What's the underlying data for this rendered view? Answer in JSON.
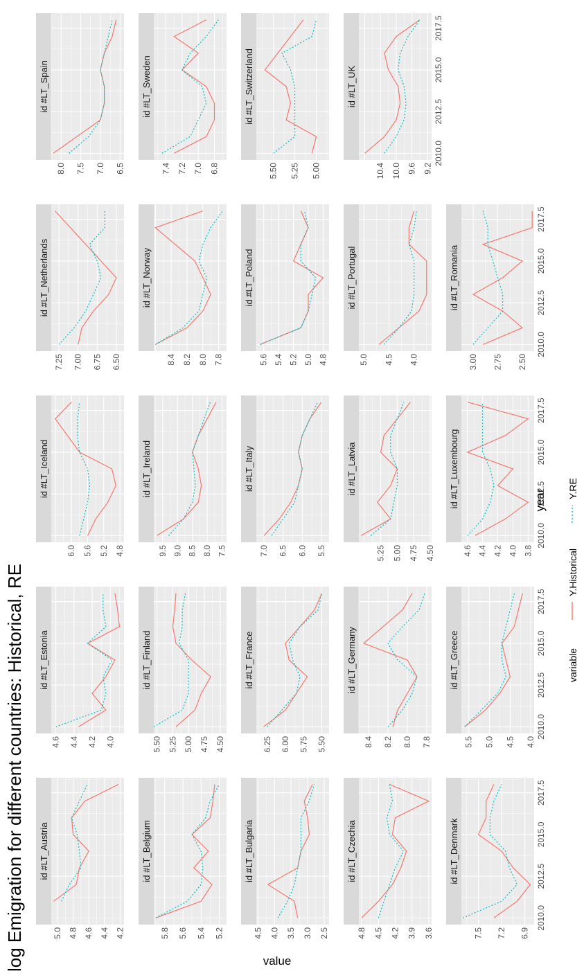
{
  "chart_data": {
    "type": "line",
    "title": "log Emigration for different countries: Historical, RE",
    "xlabel": "year",
    "ylabel": "value",
    "legend": {
      "title": "variable",
      "position": "bottom",
      "entries": [
        {
          "name": "Y.Historical",
          "color": "#f8766d",
          "linetype": "solid"
        },
        {
          "name": "Y.RE",
          "color": "#00bfc4",
          "linetype": "dotted"
        }
      ]
    },
    "grid": true,
    "x": [
      2010,
      2011,
      2012,
      2013,
      2014,
      2015,
      2016,
      2017,
      2018
    ],
    "x_ticks": [
      "2010.0",
      "2012.5",
      "2015.0",
      "2017.5"
    ],
    "panels": [
      {
        "label": "id #LT_Austria",
        "x": [
          2011,
          2012,
          2013,
          2014,
          2015,
          2016,
          2017,
          2018
        ],
        "x_ticks": [
          "2012.5",
          "2015.0",
          "2017.5"
        ],
        "ylim": [
          4.15,
          5.08
        ],
        "y_ticks": [
          "4.2",
          "4.4",
          "4.6",
          "4.8",
          "5.0"
        ],
        "series": [
          {
            "name": "Y.Historical",
            "values": [
              5.05,
              4.76,
              4.72,
              4.6,
              4.8,
              4.82,
              4.65,
              4.22
            ]
          },
          {
            "name": "Y.RE",
            "values": [
              4.95,
              4.85,
              4.7,
              4.72,
              4.75,
              4.82,
              4.72,
              4.62
            ]
          }
        ]
      },
      {
        "label": "id #LT_Belgium",
        "ylim": [
          5.12,
          5.92
        ],
        "y_ticks": [
          "5.2",
          "5.4",
          "5.6",
          "5.8"
        ],
        "series": [
          {
            "name": "Y.Historical",
            "values": [
              5.9,
              5.4,
              5.28,
              5.48,
              5.32,
              5.5,
              5.3,
              5.27,
              5.25
            ]
          },
          {
            "name": "Y.RE",
            "values": [
              5.9,
              5.55,
              5.4,
              5.38,
              5.4,
              5.5,
              5.35,
              5.3,
              5.2
            ]
          }
        ]
      },
      {
        "label": "id #LT_Bulgaria",
        "ylim": [
          2.35,
          4.55
        ],
        "y_ticks": [
          "2.5",
          "3.0",
          "3.5",
          "4.0",
          "4.5"
        ],
        "series": [
          {
            "name": "Y.Historical",
            "values": [
              3.3,
              3.4,
              4.2,
              3.3,
              3.2,
              2.95,
              3.0,
              3.1,
              2.85
            ]
          },
          {
            "name": "Y.RE",
            "values": [
              3.9,
              3.6,
              3.4,
              3.3,
              3.2,
              3.2,
              3.2,
              2.95,
              2.8
            ]
          }
        ]
      },
      {
        "label": "id #LT_Czechia",
        "ylim": [
          3.55,
          4.85
        ],
        "y_ticks": [
          "3.6",
          "3.9",
          "4.2",
          "4.5",
          "4.8"
        ],
        "series": [
          {
            "name": "Y.Historical",
            "values": [
              4.8,
              4.5,
              4.25,
              4.1,
              4.0,
              4.25,
              4.2,
              3.6,
              4.3
            ]
          },
          {
            "name": "Y.RE",
            "values": [
              4.5,
              4.4,
              4.3,
              4.2,
              4.05,
              4.3,
              4.35,
              4.25,
              4.3
            ]
          }
        ]
      },
      {
        "label": "id #LT_Denmark",
        "ylim": [
          6.78,
          7.72
        ],
        "y_ticks": [
          "6.9",
          "7.2",
          "7.5"
        ],
        "series": [
          {
            "name": "Y.Historical",
            "values": [
              7.3,
              7.0,
              6.83,
              7.05,
              7.2,
              7.5,
              7.4,
              7.4,
              7.3
            ]
          },
          {
            "name": "Y.RE",
            "values": [
              7.7,
              7.2,
              7.0,
              7.1,
              7.15,
              7.35,
              7.35,
              7.3,
              7.2
            ]
          }
        ]
      },
      {
        "label": "id #LT_Estonia",
        "ylim": [
          3.85,
          4.65
        ],
        "y_ticks": [
          "4.0",
          "4.2",
          "4.4",
          "4.6"
        ],
        "series": [
          {
            "name": "Y.Historical",
            "values": [
              4.35,
              4.05,
              4.2,
              4.05,
              3.95,
              4.25,
              3.9,
              3.92,
              3.95
            ]
          },
          {
            "name": "Y.RE",
            "values": [
              4.6,
              4.1,
              4.05,
              4.08,
              3.98,
              4.25,
              4.05,
              4.08,
              4.08
            ]
          }
        ]
      },
      {
        "label": "id #LT_Finland",
        "ylim": [
          4.4,
          5.55
        ],
        "y_ticks": [
          "4.50",
          "4.75",
          "5.00",
          "5.25",
          "5.50"
        ],
        "series": [
          {
            "name": "Y.Historical",
            "values": [
              5.2,
              4.9,
              4.8,
              4.65,
              4.95,
              5.2,
              5.25,
              5.22,
              5.2
            ]
          },
          {
            "name": "Y.RE",
            "values": [
              5.55,
              5.1,
              5.0,
              5.0,
              5.0,
              5.15,
              5.1,
              5.1,
              5.05
            ]
          }
        ]
      },
      {
        "label": "id #LT_France",
        "ylim": [
          5.4,
          6.4
        ],
        "y_ticks": [
          "5.50",
          "5.75",
          "6.00",
          "6.25"
        ],
        "series": [
          {
            "name": "Y.Historical",
            "values": [
              6.3,
              6.0,
              5.85,
              5.7,
              5.95,
              6.0,
              5.8,
              5.6,
              5.5
            ]
          },
          {
            "name": "Y.RE",
            "values": [
              6.25,
              6.05,
              5.85,
              5.8,
              5.9,
              5.95,
              5.8,
              5.55,
              5.5
            ]
          }
        ]
      },
      {
        "label": "id #LT_Germany",
        "ylim": [
          7.75,
          8.5
        ],
        "y_ticks": [
          "7.8",
          "8.0",
          "8.2",
          "8.4"
        ],
        "series": [
          {
            "name": "Y.Historical",
            "values": [
              8.15,
              8.1,
              8.0,
              7.9,
              8.0,
              8.45,
              8.25,
              8.05,
              7.95
            ]
          },
          {
            "name": "Y.RE",
            "values": [
              8.2,
              8.05,
              7.95,
              7.9,
              8.1,
              8.2,
              8.05,
              7.88,
              7.82
            ]
          }
        ]
      },
      {
        "label": "id #LT_Greece",
        "ylim": [
          3.92,
          5.68
        ],
        "y_ticks": [
          "4.0",
          "4.5",
          "5.0",
          "5.5"
        ],
        "series": [
          {
            "name": "Y.Historical",
            "values": [
              5.6,
              5.1,
              4.75,
              4.5,
              4.6,
              4.7,
              4.4,
              4.3,
              4.2
            ]
          },
          {
            "name": "Y.RE",
            "values": [
              5.6,
              5.2,
              4.8,
              4.6,
              4.7,
              4.7,
              4.6,
              4.5,
              4.4
            ]
          }
        ]
      },
      {
        "label": "id #LT_Iceland",
        "ylim": [
          4.7,
          6.5
        ],
        "y_ticks": [
          "4.8",
          "5.2",
          "5.6",
          "6.0"
        ],
        "series": [
          {
            "name": "Y.Historical",
            "values": [
              5.6,
              5.4,
              5.1,
              4.9,
              5.0,
              5.8,
              6.1,
              6.4,
              6.0
            ]
          },
          {
            "name": "Y.RE",
            "values": [
              5.8,
              5.7,
              5.6,
              5.55,
              5.6,
              5.8,
              5.85,
              5.85,
              5.8
            ]
          }
        ]
      },
      {
        "label": "id #LT_Ireland",
        "ylim": [
          7.35,
          9.8
        ],
        "y_ticks": [
          "7.5",
          "8.0",
          "8.5",
          "9.0",
          "9.5"
        ],
        "series": [
          {
            "name": "Y.Historical",
            "values": [
              9.7,
              8.8,
              8.3,
              8.2,
              8.3,
              8.5,
              8.3,
              8.0,
              7.7
            ]
          },
          {
            "name": "Y.RE",
            "values": [
              9.3,
              8.8,
              8.5,
              8.4,
              8.45,
              8.5,
              8.3,
              8.1,
              7.9
            ]
          }
        ]
      },
      {
        "label": "id #LT_Italy",
        "ylim": [
          5.3,
          7.2
        ],
        "y_ticks": [
          "5.5",
          "6.0",
          "6.5",
          "7.0"
        ],
        "series": [
          {
            "name": "Y.Historical",
            "values": [
              7.0,
              6.6,
              6.3,
              6.1,
              6.0,
              6.1,
              6.0,
              5.8,
              5.5
            ]
          },
          {
            "name": "Y.RE",
            "values": [
              6.8,
              6.5,
              6.2,
              6.1,
              6.0,
              6.1,
              6.0,
              5.8,
              5.6
            ]
          }
        ]
      },
      {
        "label": "id #LT_Latvia",
        "ylim": [
          4.48,
          5.58
        ],
        "y_ticks": [
          "4.50",
          "4.75",
          "5.00",
          "5.25"
        ],
        "series": [
          {
            "name": "Y.Historical",
            "values": [
              5.55,
              5.1,
              5.3,
              5.1,
              5.0,
              5.25,
              5.2,
              5.0,
              4.8
            ]
          },
          {
            "name": "Y.RE",
            "values": [
              5.4,
              5.1,
              5.05,
              5.0,
              5.0,
              5.1,
              5.1,
              5.0,
              4.9
            ]
          }
        ]
      },
      {
        "label": "id #LT_Luxembourg",
        "ylim": [
          3.72,
          4.68
        ],
        "y_ticks": [
          "3.8",
          "4.0",
          "4.2",
          "4.4",
          "4.6"
        ],
        "series": [
          {
            "name": "Y.Historical",
            "values": [
              4.5,
              4.1,
              3.8,
              4.2,
              4.0,
              4.6,
              4.1,
              3.8,
              4.6
            ]
          },
          {
            "name": "Y.RE",
            "values": [
              4.6,
              4.4,
              4.3,
              4.25,
              4.3,
              4.4,
              4.4,
              4.4,
              4.4
            ]
          }
        ]
      },
      {
        "label": "id #LT_Netherlands",
        "ylim": [
          6.4,
          7.35
        ],
        "y_ticks": [
          "6.50",
          "6.75",
          "7.00",
          "7.25"
        ],
        "series": [
          {
            "name": "Y.Historical",
            "values": [
              7.0,
              6.95,
              6.8,
              6.6,
              6.5,
              6.7,
              6.9,
              7.1,
              7.3
            ]
          },
          {
            "name": "Y.RE",
            "values": [
              7.25,
              7.05,
              6.9,
              6.8,
              6.7,
              6.75,
              6.85,
              6.65,
              6.65
            ]
          }
        ]
      },
      {
        "label": "id #LT_Norway",
        "ylim": [
          7.7,
          8.62
        ],
        "y_ticks": [
          "7.8",
          "8.0",
          "8.2",
          "8.4"
        ],
        "series": [
          {
            "name": "Y.Historical",
            "values": [
              8.6,
              8.2,
              8.0,
              7.9,
              8.0,
              8.1,
              8.35,
              8.6,
              8.0
            ]
          },
          {
            "name": "Y.RE",
            "values": [
              8.6,
              8.25,
              8.05,
              8.0,
              7.95,
              8.05,
              8.0,
              7.9,
              7.75
            ]
          }
        ]
      },
      {
        "label": "id #LT_Poland",
        "ylim": [
          4.72,
          5.7
        ],
        "y_ticks": [
          "4.8",
          "5.0",
          "5.2",
          "5.4",
          "5.6"
        ],
        "series": [
          {
            "name": "Y.Historical",
            "values": [
              5.65,
              5.1,
              5.0,
              5.0,
              4.8,
              5.2,
              5.1,
              5.0,
              5.1
            ]
          },
          {
            "name": "Y.RE",
            "values": [
              5.65,
              5.1,
              5.0,
              4.95,
              4.9,
              5.1,
              5.1,
              5.0,
              5.05
            ]
          }
        ]
      },
      {
        "label": "id #LT_Portugal",
        "ylim": [
          3.65,
          5.1
        ],
        "y_ticks": [
          "4.0",
          "4.5",
          "5.0"
        ],
        "series": [
          {
            "name": "Y.Historical",
            "values": [
              4.7,
              4.3,
              3.9,
              3.75,
              3.75,
              3.75,
              4.1,
              4.1,
              4.0
            ]
          },
          {
            "name": "Y.RE",
            "values": [
              4.6,
              4.3,
              4.05,
              4.0,
              4.0,
              4.0,
              4.1,
              4.0,
              3.95
            ]
          }
        ]
      },
      {
        "label": "id #LT_Romania",
        "ylim": [
          2.38,
          3.12
        ],
        "y_ticks": [
          "2.50",
          "2.75",
          "3.00"
        ],
        "series": [
          {
            "name": "Y.Historical",
            "values": [
              2.9,
              2.5,
              2.7,
              3.0,
              2.7,
              2.5,
              2.9,
              2.4,
              2.4
            ]
          },
          {
            "name": "Y.RE",
            "values": [
              3.0,
              2.85,
              2.7,
              2.7,
              2.75,
              2.8,
              2.85,
              2.85,
              2.9
            ]
          }
        ]
      },
      {
        "label": "id #LT_Spain",
        "ylim": [
          6.4,
          8.25
        ],
        "y_ticks": [
          "6.5",
          "7.0",
          "7.5",
          "8.0"
        ],
        "series": [
          {
            "name": "Y.Historical",
            "values": [
              8.2,
              7.6,
              7.0,
              6.9,
              6.9,
              7.0,
              6.9,
              6.7,
              6.6
            ]
          },
          {
            "name": "Y.RE",
            "values": [
              7.8,
              7.3,
              7.0,
              6.9,
              6.9,
              7.0,
              6.9,
              6.8,
              6.7
            ]
          }
        ]
      },
      {
        "label": "id #LT_Sweden",
        "ylim": [
          6.65,
          7.55
        ],
        "y_ticks": [
          "6.8",
          "7.0",
          "7.2",
          "7.4"
        ],
        "series": [
          {
            "name": "Y.Historical",
            "values": [
              7.3,
              6.9,
              6.8,
              6.8,
              6.9,
              7.2,
              7.0,
              7.3,
              6.9
            ]
          },
          {
            "name": "Y.RE",
            "values": [
              7.45,
              7.1,
              7.0,
              6.9,
              6.95,
              7.2,
              7.1,
              6.9,
              6.75
            ]
          }
        ]
      },
      {
        "label": "id #LT_Switzerland",
        "ylim": [
          4.85,
          5.7
        ],
        "y_ticks": [
          "5.00",
          "5.25",
          "5.50"
        ],
        "series": [
          {
            "name": "Y.Historical",
            "values": [
              5.05,
              5.0,
              5.35,
              5.3,
              5.35,
              5.6,
              5.45,
              5.3,
              5.15
            ]
          },
          {
            "name": "Y.RE",
            "values": [
              5.5,
              5.25,
              5.25,
              5.25,
              5.25,
              5.3,
              5.4,
              5.05,
              5.0
            ]
          }
        ]
      },
      {
        "label": "id #LT_UK",
        "ylim": [
          9.1,
          10.95
        ],
        "y_ticks": [
          "9.2",
          "9.6",
          "10.0",
          "10.4"
        ],
        "series": [
          {
            "name": "Y.Historical",
            "values": [
              10.8,
              10.3,
              10.0,
              9.9,
              9.95,
              10.2,
              10.3,
              10.0,
              9.4
            ]
          },
          {
            "name": "Y.RE",
            "values": [
              10.3,
              10.0,
              9.8,
              9.75,
              9.8,
              9.95,
              9.9,
              9.7,
              9.4
            ]
          }
        ]
      }
    ]
  }
}
